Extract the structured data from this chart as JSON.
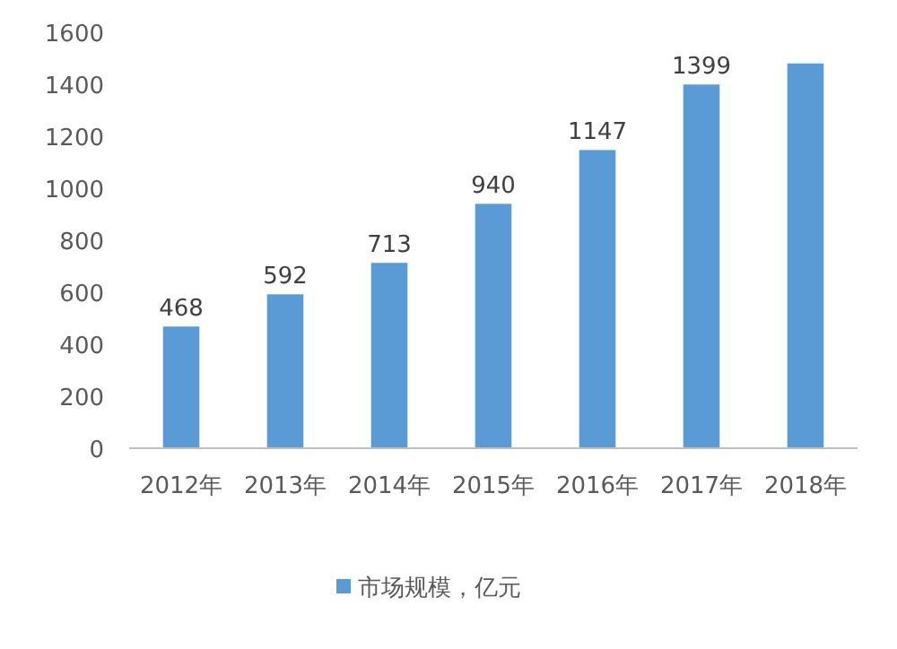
{
  "chart_data": {
    "type": "bar",
    "categories": [
      "2012年",
      "2013年",
      "2014年",
      "2015年",
      "2016年",
      "2017年",
      "2018年"
    ],
    "series": [
      {
        "name": "市场规模，亿元",
        "color": "#5b9bd5",
        "values": [
          468,
          592,
          713,
          940,
          1147,
          1399,
          1480
        ],
        "value_labels": [
          "468",
          "592",
          "713",
          "940",
          "1147",
          "1399",
          null
        ]
      }
    ],
    "ylim": [
      0,
      1600
    ],
    "yticks": [
      0,
      200,
      400,
      600,
      800,
      1000,
      1200,
      1400,
      1600
    ],
    "grid": false,
    "legend": "bottom"
  }
}
